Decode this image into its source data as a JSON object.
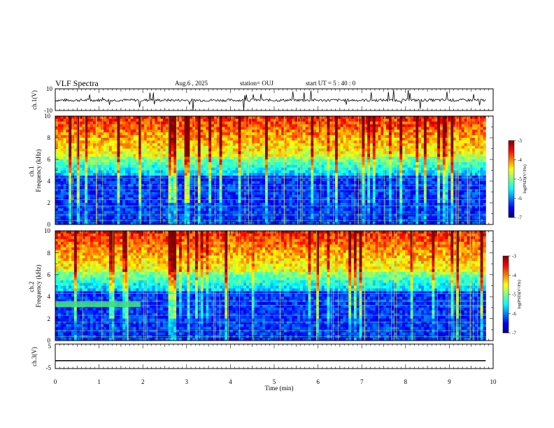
{
  "header": {
    "title": "VLF Spectra",
    "date": "Aug.6  , 2025",
    "station": "station= OUJ",
    "start": "start  UT  =   5  : 40 : 0"
  },
  "chart_data": [
    {
      "type": "line",
      "id": "ch1-waveform",
      "ylabel": "ch.1(V)",
      "ylim": [
        -10,
        10
      ],
      "yticks": [
        "10",
        "-10"
      ],
      "xlim": [
        0,
        10
      ],
      "baseline": -0.5,
      "xlabel": ""
    },
    {
      "type": "heatmap",
      "id": "ch1-spectrogram",
      "ylabel": "ch.1\nFrequency (kHz)",
      "ylim": [
        0,
        10
      ],
      "yticks": [
        "0",
        "2",
        "4",
        "6",
        "8",
        "10"
      ],
      "xlim": [
        0,
        9.83
      ],
      "colorbar": {
        "label": "log(PSD)(V²/Hz)",
        "range": [
          -7,
          -3
        ],
        "ticks": [
          "-3",
          "-4",
          "-5",
          "-6",
          "-7"
        ]
      }
    },
    {
      "type": "heatmap",
      "id": "ch2-spectrogram",
      "ylabel": "ch.2\nFrequency (kHz)",
      "ylim": [
        0,
        10
      ],
      "yticks": [
        "0",
        "2",
        "4",
        "6",
        "8",
        "10"
      ],
      "xlim": [
        0,
        9.83
      ],
      "notable": "narrowband signal near 3.3 kHz from 0 to ~1.95 min",
      "colorbar": {
        "label": "log(PSD)(V²/Hz)",
        "range": [
          -7,
          -3
        ],
        "ticks": [
          "-3",
          "-4",
          "-5",
          "-6",
          "-7"
        ]
      }
    },
    {
      "type": "line",
      "id": "ch3-waveform",
      "ylabel": "ch.3(V)",
      "ylim": [
        -5,
        5
      ],
      "yticks": [
        "5",
        "-5"
      ],
      "xlim": [
        0,
        10
      ],
      "baseline": -1.8,
      "xlabel": "Time (min)",
      "xticks": [
        "0",
        "1",
        "2",
        "3",
        "4",
        "5",
        "6",
        "7",
        "8",
        "9",
        "10"
      ]
    }
  ],
  "colors": {
    "jet_low": "#00007f",
    "jet_high": "#7f0000",
    "line": "#000000"
  }
}
